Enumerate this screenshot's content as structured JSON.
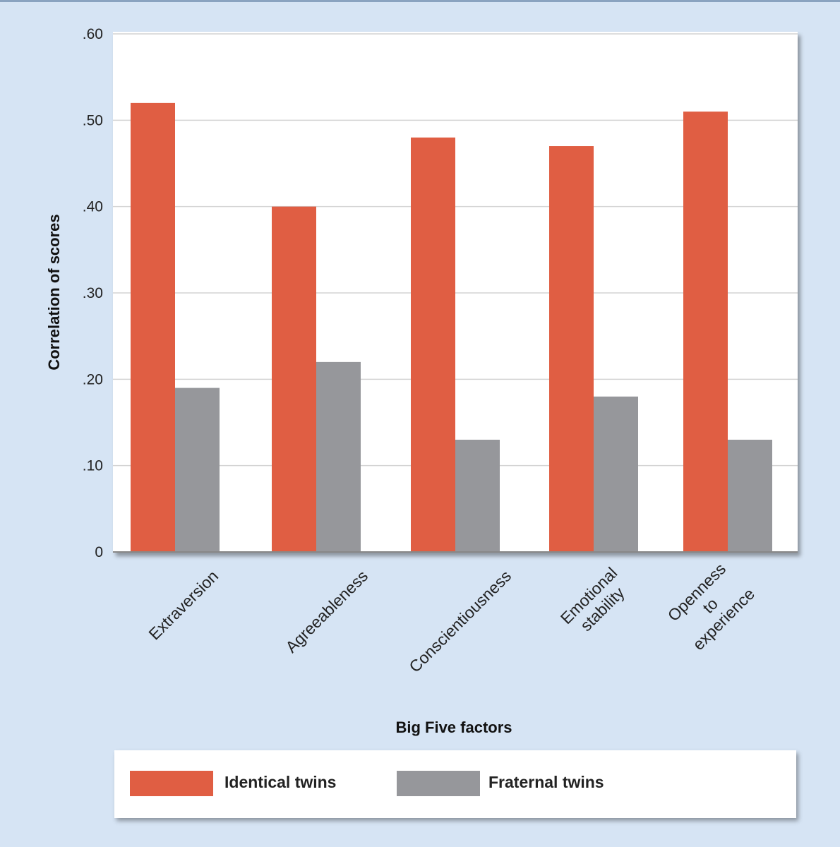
{
  "colors": {
    "identical": "#e05e43",
    "fraternal": "#96979b",
    "background": "#d6e4f4",
    "plot": "#ffffff",
    "grid": "#d4d4d4"
  },
  "chart_data": {
    "type": "bar",
    "xlabel": "Big Five factors",
    "ylabel": "Correlation of scores",
    "ylim": [
      0,
      0.6
    ],
    "yticks": [
      {
        "value": 0,
        "label": "0"
      },
      {
        "value": 0.1,
        "label": ".10"
      },
      {
        "value": 0.2,
        "label": ".20"
      },
      {
        "value": 0.3,
        "label": ".30"
      },
      {
        "value": 0.4,
        "label": ".40"
      },
      {
        "value": 0.5,
        "label": ".50"
      },
      {
        "value": 0.6,
        "label": ".60"
      }
    ],
    "grid": true,
    "legend_position": "bottom",
    "categories": [
      [
        "Extraversion"
      ],
      [
        "Agreeableness"
      ],
      [
        "Conscientiousness"
      ],
      [
        "Emotional",
        "stability"
      ],
      [
        "Openness",
        "to",
        "experience"
      ]
    ],
    "series": [
      {
        "name": "Identical twins",
        "color": "#e05e43",
        "values": [
          0.52,
          0.4,
          0.48,
          0.47,
          0.51
        ]
      },
      {
        "name": "Fraternal twins",
        "color": "#96979b",
        "values": [
          0.19,
          0.22,
          0.13,
          0.18,
          0.13
        ]
      }
    ]
  },
  "legend": {
    "identical_label": "Identical twins",
    "fraternal_label": "Fraternal twins"
  }
}
